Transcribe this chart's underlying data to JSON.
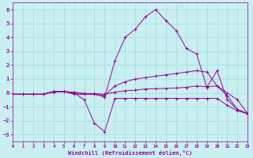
{
  "xlabel": "Windchill (Refroidissement éolien,°C)",
  "xlim": [
    0,
    23
  ],
  "ylim": [
    -3.5,
    6.5
  ],
  "xticks": [
    0,
    1,
    2,
    3,
    4,
    5,
    6,
    7,
    8,
    9,
    10,
    11,
    12,
    13,
    14,
    15,
    16,
    17,
    18,
    19,
    20,
    21,
    22,
    23
  ],
  "yticks": [
    -3,
    -2,
    -1,
    0,
    1,
    2,
    3,
    4,
    5,
    6
  ],
  "background_color": "#c8f0f0",
  "line_color": "#990099",
  "grid_color": "#aadddd",
  "lines": [
    {
      "comment": "tall peak line - reaches ~6 at x=14",
      "x": [
        0,
        1,
        2,
        3,
        4,
        5,
        6,
        7,
        8,
        9,
        10,
        11,
        12,
        13,
        14,
        15,
        16,
        17,
        18,
        19,
        20,
        21,
        22,
        23
      ],
      "y": [
        -0.1,
        -0.1,
        -0.1,
        -0.1,
        0.1,
        0.1,
        -0.1,
        -0.1,
        -0.1,
        -0.3,
        2.3,
        4.0,
        4.6,
        5.5,
        6.0,
        5.2,
        4.5,
        3.2,
        2.8,
        0.4,
        1.6,
        -0.5,
        -1.2,
        -1.5
      ]
    },
    {
      "comment": "dip to -2.8 line",
      "x": [
        0,
        1,
        2,
        3,
        4,
        5,
        6,
        7,
        8,
        9,
        10,
        11,
        12,
        13,
        14,
        15,
        16,
        17,
        18,
        19,
        20,
        21,
        22,
        23
      ],
      "y": [
        -0.1,
        -0.1,
        -0.1,
        -0.1,
        0.1,
        0.1,
        0.0,
        -0.5,
        -2.2,
        -2.8,
        -0.4,
        -0.4,
        -0.4,
        -0.4,
        -0.4,
        -0.4,
        -0.4,
        -0.4,
        -0.4,
        -0.4,
        -0.4,
        -0.9,
        -1.3,
        -1.5
      ]
    },
    {
      "comment": "rises to ~1.6 at x=18-19 line",
      "x": [
        0,
        1,
        2,
        3,
        4,
        5,
        6,
        7,
        8,
        9,
        10,
        11,
        12,
        13,
        14,
        15,
        16,
        17,
        18,
        19,
        20,
        21,
        22,
        23
      ],
      "y": [
        -0.1,
        -0.1,
        -0.1,
        -0.1,
        0.1,
        0.1,
        0.05,
        -0.05,
        -0.1,
        -0.2,
        0.5,
        0.8,
        1.0,
        1.1,
        1.2,
        1.3,
        1.4,
        1.5,
        1.6,
        1.5,
        0.5,
        -0.2,
        -1.2,
        -1.5
      ]
    },
    {
      "comment": "flattest line near 0 to 0.5",
      "x": [
        0,
        1,
        2,
        3,
        4,
        5,
        6,
        7,
        8,
        9,
        10,
        11,
        12,
        13,
        14,
        15,
        16,
        17,
        18,
        19,
        20,
        21,
        22,
        23
      ],
      "y": [
        -0.1,
        -0.1,
        -0.1,
        -0.1,
        0.05,
        0.1,
        0.0,
        -0.05,
        -0.05,
        -0.1,
        0.05,
        0.15,
        0.2,
        0.28,
        0.3,
        0.32,
        0.35,
        0.4,
        0.5,
        0.45,
        0.5,
        0.0,
        -0.5,
        -1.5
      ]
    }
  ]
}
